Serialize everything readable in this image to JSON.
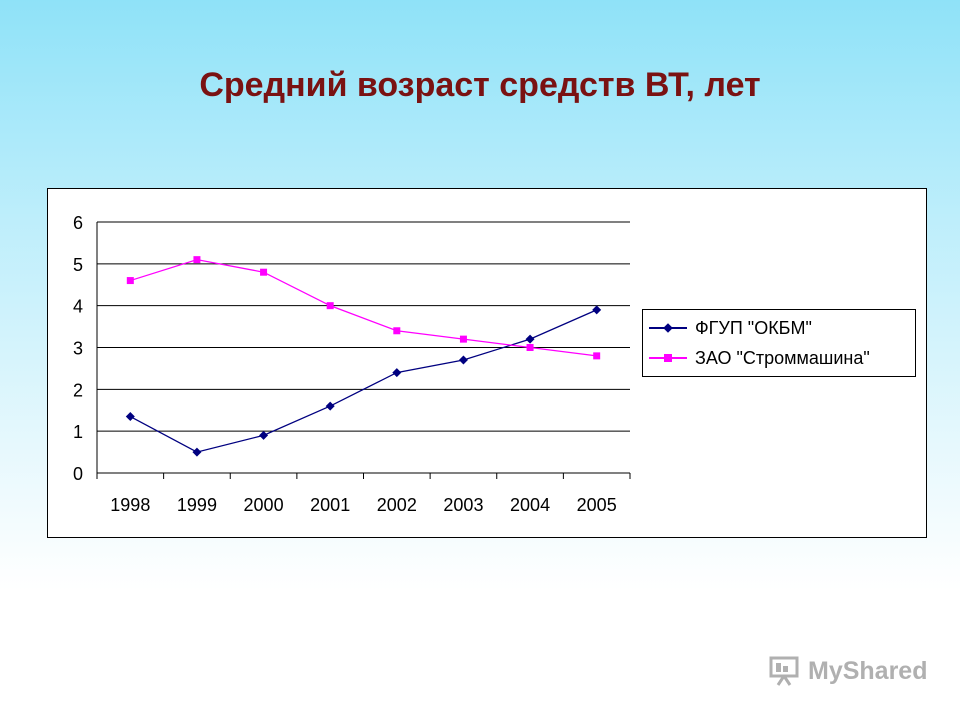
{
  "slide": {
    "title": "Средний возраст средств ВТ, лет",
    "watermark": "MyShared"
  },
  "chart_data": {
    "type": "line",
    "title": "",
    "xlabel": "",
    "ylabel": "",
    "categories": [
      "1998",
      "1999",
      "2000",
      "2001",
      "2002",
      "2003",
      "2004",
      "2005"
    ],
    "ylim": [
      0,
      6
    ],
    "yticks": [
      0,
      1,
      2,
      3,
      4,
      5,
      6
    ],
    "grid": true,
    "legend_position": "right",
    "series": [
      {
        "name": "ФГУП \"ОКБМ\"",
        "color": "#000080",
        "marker": "diamond",
        "values": [
          1.35,
          0.5,
          0.9,
          1.6,
          2.4,
          2.7,
          3.2,
          3.9
        ]
      },
      {
        "name": "ЗАО \"Строммашина\"",
        "color": "#ff00ff",
        "marker": "square",
        "values": [
          4.6,
          5.1,
          4.8,
          4.0,
          3.4,
          3.2,
          3.0,
          2.8
        ]
      }
    ]
  }
}
